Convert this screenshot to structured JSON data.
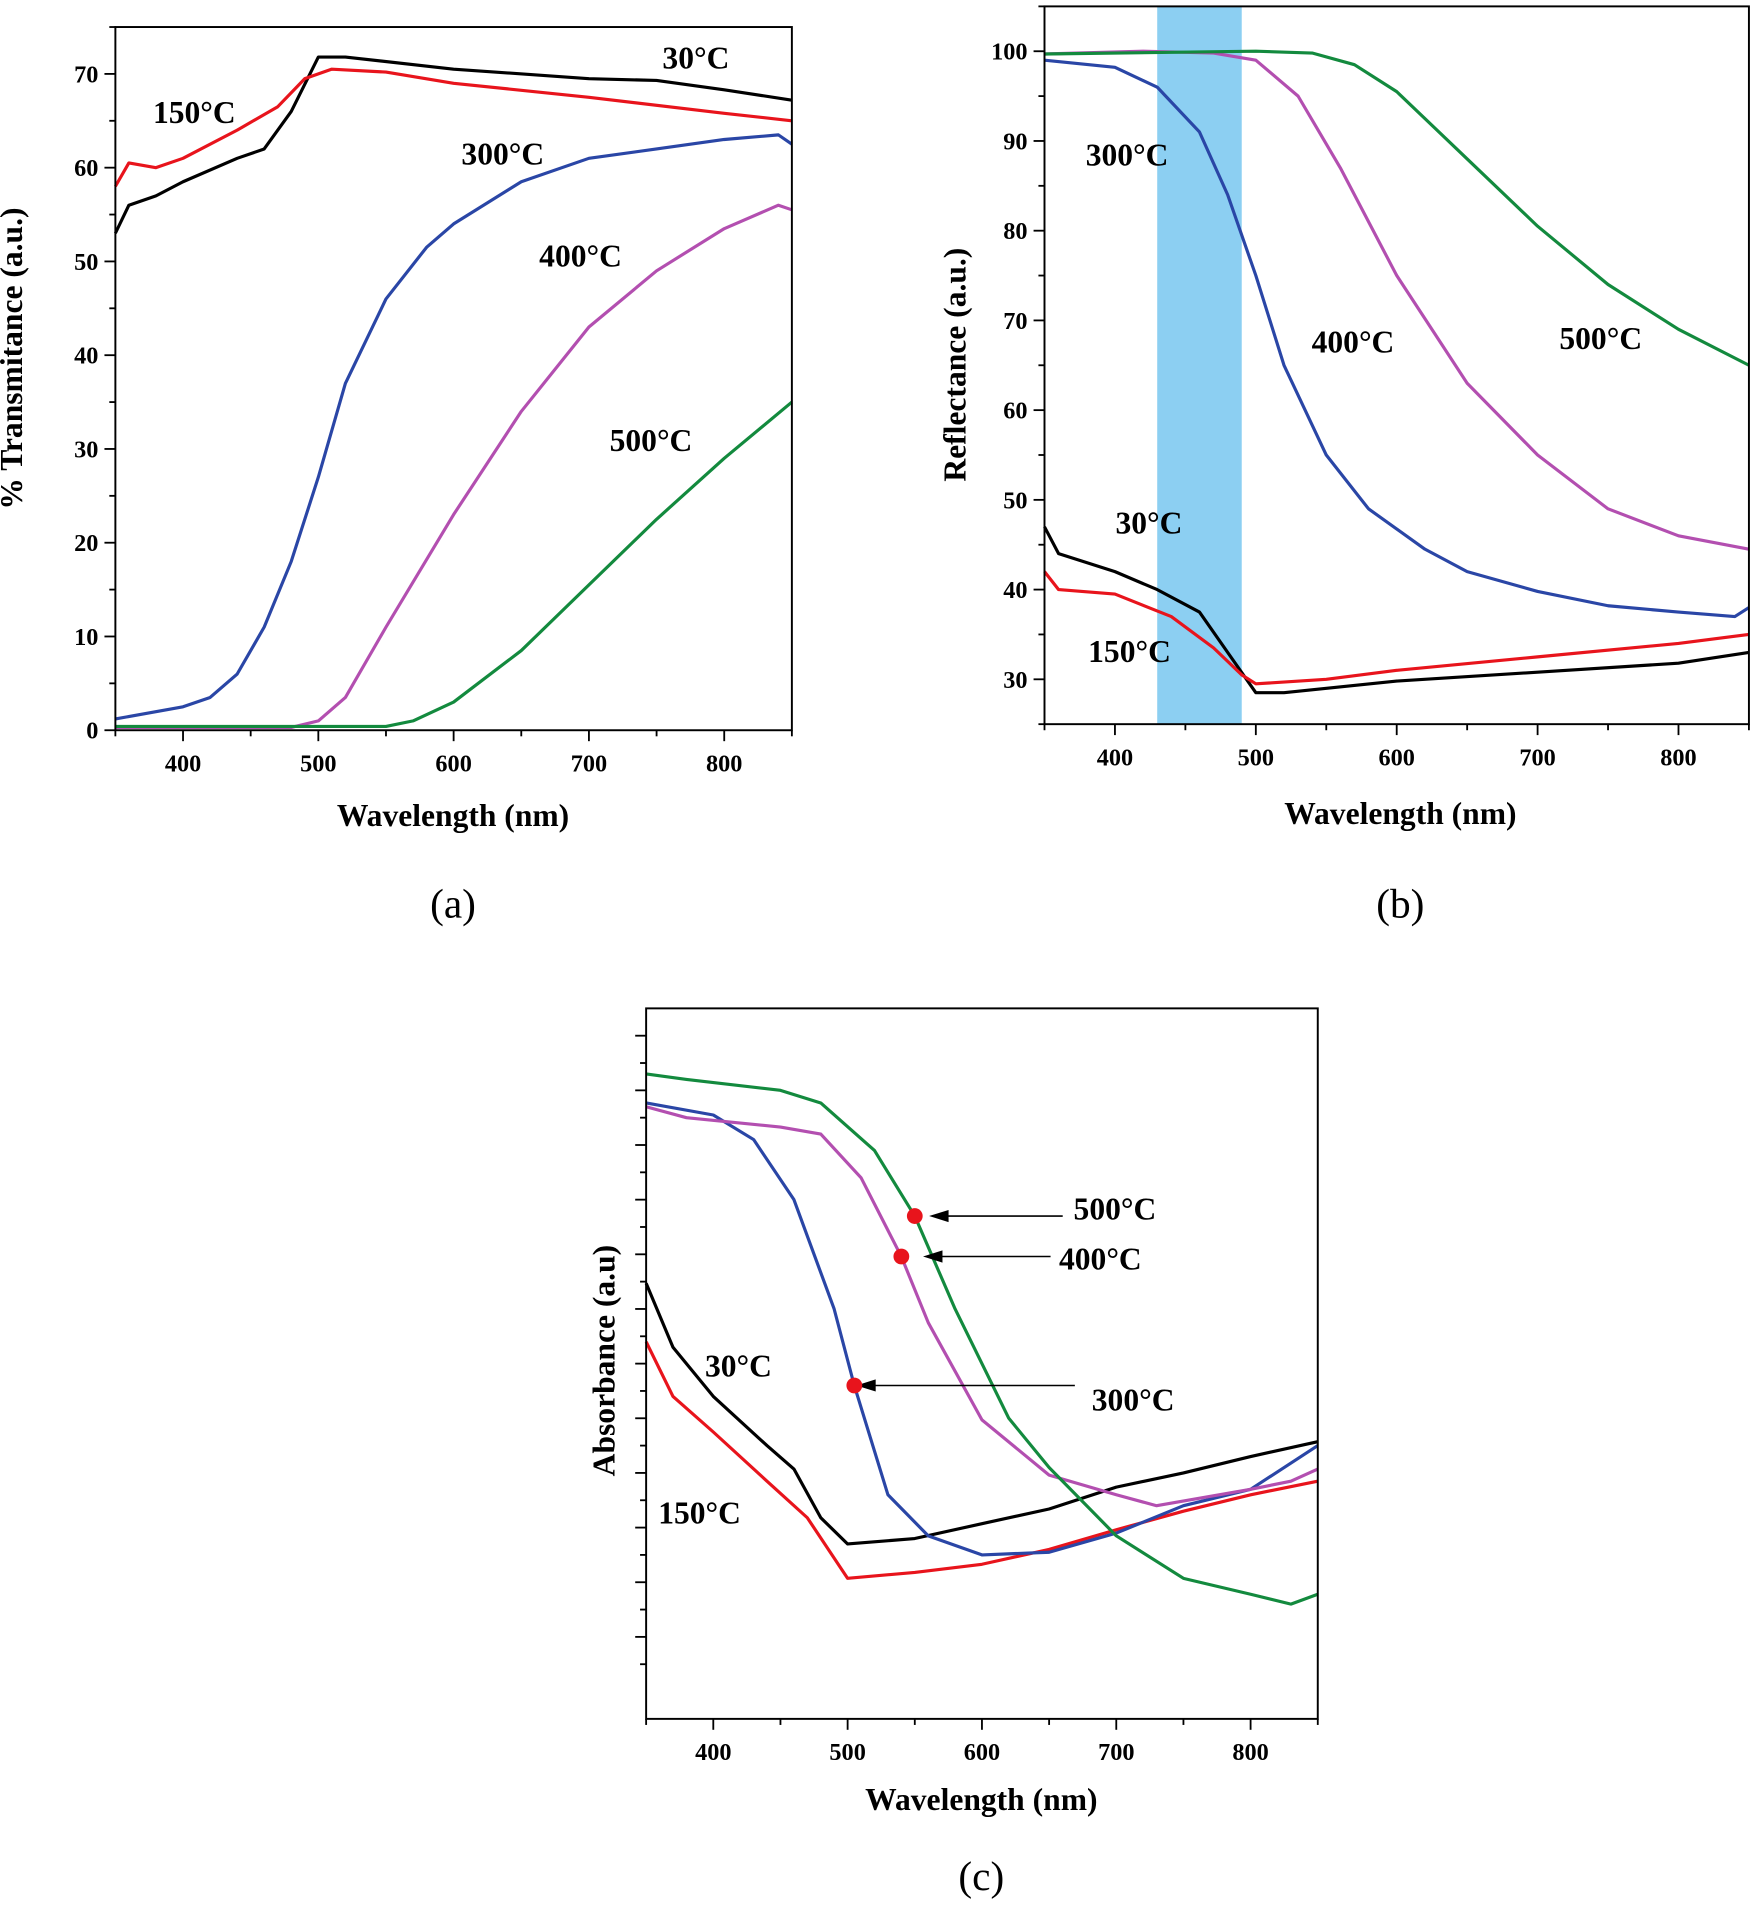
{
  "chart_data": [
    {
      "panel": "a",
      "type": "line",
      "caption": "(a)",
      "xlabel": "Wavelength (nm)",
      "ylabel": "% Transmitance (a.u.)",
      "xlim": [
        350,
        850
      ],
      "ylim": [
        0,
        75
      ],
      "xticks": [
        400,
        500,
        600,
        700,
        800
      ],
      "yticks": [
        0,
        10,
        20,
        30,
        40,
        50,
        60,
        70
      ],
      "grid": false,
      "series": [
        {
          "name": "30°C",
          "color": "#000000",
          "points": [
            [
              350,
              53
            ],
            [
              360,
              56
            ],
            [
              380,
              57
            ],
            [
              400,
              58.5
            ],
            [
              440,
              61
            ],
            [
              460,
              62
            ],
            [
              480,
              66
            ],
            [
              500,
              71.8
            ],
            [
              520,
              71.8
            ],
            [
              600,
              70.5
            ],
            [
              700,
              69.5
            ],
            [
              750,
              69.3
            ],
            [
              800,
              68.3
            ],
            [
              850,
              67.2
            ]
          ]
        },
        {
          "name": "150°C",
          "color": "#e8141c",
          "points": [
            [
              350,
              58
            ],
            [
              360,
              60.5
            ],
            [
              380,
              60
            ],
            [
              400,
              61
            ],
            [
              440,
              64
            ],
            [
              470,
              66.5
            ],
            [
              490,
              69.5
            ],
            [
              510,
              70.5
            ],
            [
              550,
              70.2
            ],
            [
              600,
              69
            ],
            [
              700,
              67.5
            ],
            [
              800,
              65.8
            ],
            [
              850,
              65
            ]
          ]
        },
        {
          "name": "300°C",
          "color": "#2a46a6",
          "points": [
            [
              350,
              1.2
            ],
            [
              400,
              2.5
            ],
            [
              420,
              3.5
            ],
            [
              440,
              6
            ],
            [
              460,
              11
            ],
            [
              480,
              18
            ],
            [
              500,
              27
            ],
            [
              520,
              37
            ],
            [
              550,
              46
            ],
            [
              580,
              51.5
            ],
            [
              600,
              54
            ],
            [
              650,
              58.5
            ],
            [
              700,
              61
            ],
            [
              750,
              62
            ],
            [
              800,
              63
            ],
            [
              840,
              63.5
            ],
            [
              850,
              62.5
            ]
          ]
        },
        {
          "name": "400°C",
          "color": "#b34fb0",
          "points": [
            [
              350,
              0.3
            ],
            [
              480,
              0.3
            ],
            [
              500,
              1
            ],
            [
              520,
              3.5
            ],
            [
              550,
              11
            ],
            [
              600,
              23
            ],
            [
              650,
              34
            ],
            [
              700,
              43
            ],
            [
              750,
              49
            ],
            [
              800,
              53.5
            ],
            [
              840,
              56
            ],
            [
              850,
              55.5
            ]
          ]
        },
        {
          "name": "500°C",
          "color": "#138a3e",
          "points": [
            [
              350,
              0.4
            ],
            [
              550,
              0.4
            ],
            [
              570,
              1
            ],
            [
              600,
              3
            ],
            [
              650,
              8.5
            ],
            [
              700,
              15.5
            ],
            [
              750,
              22.5
            ],
            [
              800,
              29
            ],
            [
              850,
              35
            ]
          ]
        }
      ]
    },
    {
      "panel": "b",
      "type": "line",
      "caption": "(b)",
      "xlabel": "Wavelength (nm)",
      "ylabel": "Reflectance (a.u.)",
      "xlim": [
        350,
        850
      ],
      "ylim": [
        25,
        105
      ],
      "xticks": [
        400,
        500,
        600,
        700,
        800
      ],
      "yticks": [
        30,
        40,
        50,
        60,
        70,
        80,
        90,
        100
      ],
      "grid": false,
      "highlight_band": {
        "x_range": [
          430,
          490
        ],
        "color": "#8ccff2"
      },
      "series": [
        {
          "name": "30°C",
          "color": "#000000",
          "points": [
            [
              350,
              47
            ],
            [
              360,
              44
            ],
            [
              400,
              42
            ],
            [
              430,
              40
            ],
            [
              460,
              37.5
            ],
            [
              480,
              33
            ],
            [
              500,
              28.5
            ],
            [
              520,
              28.5
            ],
            [
              600,
              29.8
            ],
            [
              700,
              30.8
            ],
            [
              800,
              31.8
            ],
            [
              850,
              33
            ]
          ]
        },
        {
          "name": "150°C",
          "color": "#e8141c",
          "points": [
            [
              350,
              42
            ],
            [
              360,
              40
            ],
            [
              400,
              39.5
            ],
            [
              440,
              37
            ],
            [
              470,
              33.5
            ],
            [
              490,
              30.5
            ],
            [
              500,
              29.5
            ],
            [
              550,
              30
            ],
            [
              600,
              31
            ],
            [
              700,
              32.5
            ],
            [
              800,
              34
            ],
            [
              850,
              35
            ]
          ]
        },
        {
          "name": "300°C",
          "color": "#2a46a6",
          "points": [
            [
              350,
              99
            ],
            [
              400,
              98.2
            ],
            [
              430,
              96
            ],
            [
              460,
              91
            ],
            [
              480,
              84
            ],
            [
              500,
              75
            ],
            [
              520,
              65
            ],
            [
              550,
              55
            ],
            [
              580,
              49
            ],
            [
              620,
              44.5
            ],
            [
              650,
              42
            ],
            [
              700,
              39.8
            ],
            [
              750,
              38.2
            ],
            [
              800,
              37.5
            ],
            [
              840,
              37
            ],
            [
              850,
              38
            ]
          ]
        },
        {
          "name": "400°C",
          "color": "#b34fb0",
          "points": [
            [
              350,
              99.7
            ],
            [
              420,
              100
            ],
            [
              470,
              99.8
            ],
            [
              500,
              99
            ],
            [
              530,
              95
            ],
            [
              560,
              87
            ],
            [
              600,
              75
            ],
            [
              650,
              63
            ],
            [
              700,
              55
            ],
            [
              750,
              49
            ],
            [
              800,
              46
            ],
            [
              850,
              44.5
            ]
          ]
        },
        {
          "name": "500°C",
          "color": "#138a3e",
          "points": [
            [
              350,
              99.7
            ],
            [
              500,
              100
            ],
            [
              540,
              99.8
            ],
            [
              570,
              98.5
            ],
            [
              600,
              95.5
            ],
            [
              650,
              88
            ],
            [
              700,
              80.5
            ],
            [
              750,
              74
            ],
            [
              800,
              69
            ],
            [
              850,
              65
            ]
          ]
        }
      ]
    },
    {
      "panel": "c",
      "type": "line",
      "caption": "(c)",
      "xlabel": "Wavelength (nm)",
      "ylabel": "Absorbance (a.u)",
      "xlim": [
        350,
        850
      ],
      "ylim": [
        0,
        1.3
      ],
      "xticks": [
        400,
        500,
        600,
        700,
        800
      ],
      "yticks": [],
      "y_tick_labels_shown": false,
      "grid": false,
      "series": [
        {
          "name": "30°C",
          "color": "#000000",
          "points": [
            [
              350,
              0.797
            ],
            [
              370,
              0.68
            ],
            [
              400,
              0.59
            ],
            [
              440,
              0.5
            ],
            [
              460,
              0.457
            ],
            [
              480,
              0.368
            ],
            [
              500,
              0.32
            ],
            [
              550,
              0.33
            ],
            [
              600,
              0.357
            ],
            [
              650,
              0.384
            ],
            [
              700,
              0.424
            ],
            [
              750,
              0.45
            ],
            [
              800,
              0.48
            ],
            [
              850,
              0.507
            ]
          ]
        },
        {
          "name": "150°C",
          "color": "#e8141c",
          "points": [
            [
              350,
              0.69
            ],
            [
              370,
              0.59
            ],
            [
              400,
              0.525
            ],
            [
              440,
              0.435
            ],
            [
              470,
              0.368
            ],
            [
              500,
              0.257
            ],
            [
              550,
              0.268
            ],
            [
              600,
              0.283
            ],
            [
              650,
              0.31
            ],
            [
              700,
              0.346
            ],
            [
              750,
              0.38
            ],
            [
              800,
              0.41
            ],
            [
              850,
              0.435
            ]
          ]
        },
        {
          "name": "300°C",
          "color": "#2a46a6",
          "points": [
            [
              350,
              1.127
            ],
            [
              400,
              1.105
            ],
            [
              430,
              1.06
            ],
            [
              460,
              0.95
            ],
            [
              490,
              0.75
            ],
            [
              505,
              0.61
            ],
            [
              530,
              0.41
            ],
            [
              560,
              0.335
            ],
            [
              600,
              0.3
            ],
            [
              650,
              0.305
            ],
            [
              700,
              0.34
            ],
            [
              750,
              0.39
            ],
            [
              800,
              0.42
            ],
            [
              850,
              0.5
            ]
          ]
        },
        {
          "name": "400°C",
          "color": "#b34fb0",
          "points": [
            [
              350,
              1.12
            ],
            [
              380,
              1.1
            ],
            [
              450,
              1.083
            ],
            [
              480,
              1.07
            ],
            [
              510,
              0.99
            ],
            [
              540,
              0.846
            ],
            [
              560,
              0.725
            ],
            [
              600,
              0.547
            ],
            [
              650,
              0.446
            ],
            [
              700,
              0.41
            ],
            [
              730,
              0.39
            ],
            [
              800,
              0.42
            ],
            [
              830,
              0.435
            ],
            [
              850,
              0.457
            ]
          ]
        },
        {
          "name": "500°C",
          "color": "#138a3e",
          "points": [
            [
              350,
              1.18
            ],
            [
              380,
              1.17
            ],
            [
              450,
              1.15
            ],
            [
              480,
              1.127
            ],
            [
              520,
              1.04
            ],
            [
              550,
              0.92
            ],
            [
              580,
              0.75
            ],
            [
              620,
              0.55
            ],
            [
              650,
              0.46
            ],
            [
              700,
              0.335
            ],
            [
              750,
              0.257
            ],
            [
              800,
              0.228
            ],
            [
              830,
              0.21
            ],
            [
              850,
              0.228
            ]
          ]
        }
      ],
      "markers": [
        {
          "label": "500°C",
          "x": 550,
          "y": 0.92,
          "color": "#e8141c"
        },
        {
          "label": "400°C",
          "x": 540,
          "y": 0.846,
          "color": "#e8141c"
        },
        {
          "label": "300°C",
          "x": 505,
          "y": 0.61,
          "color": "#e8141c"
        }
      ]
    }
  ]
}
